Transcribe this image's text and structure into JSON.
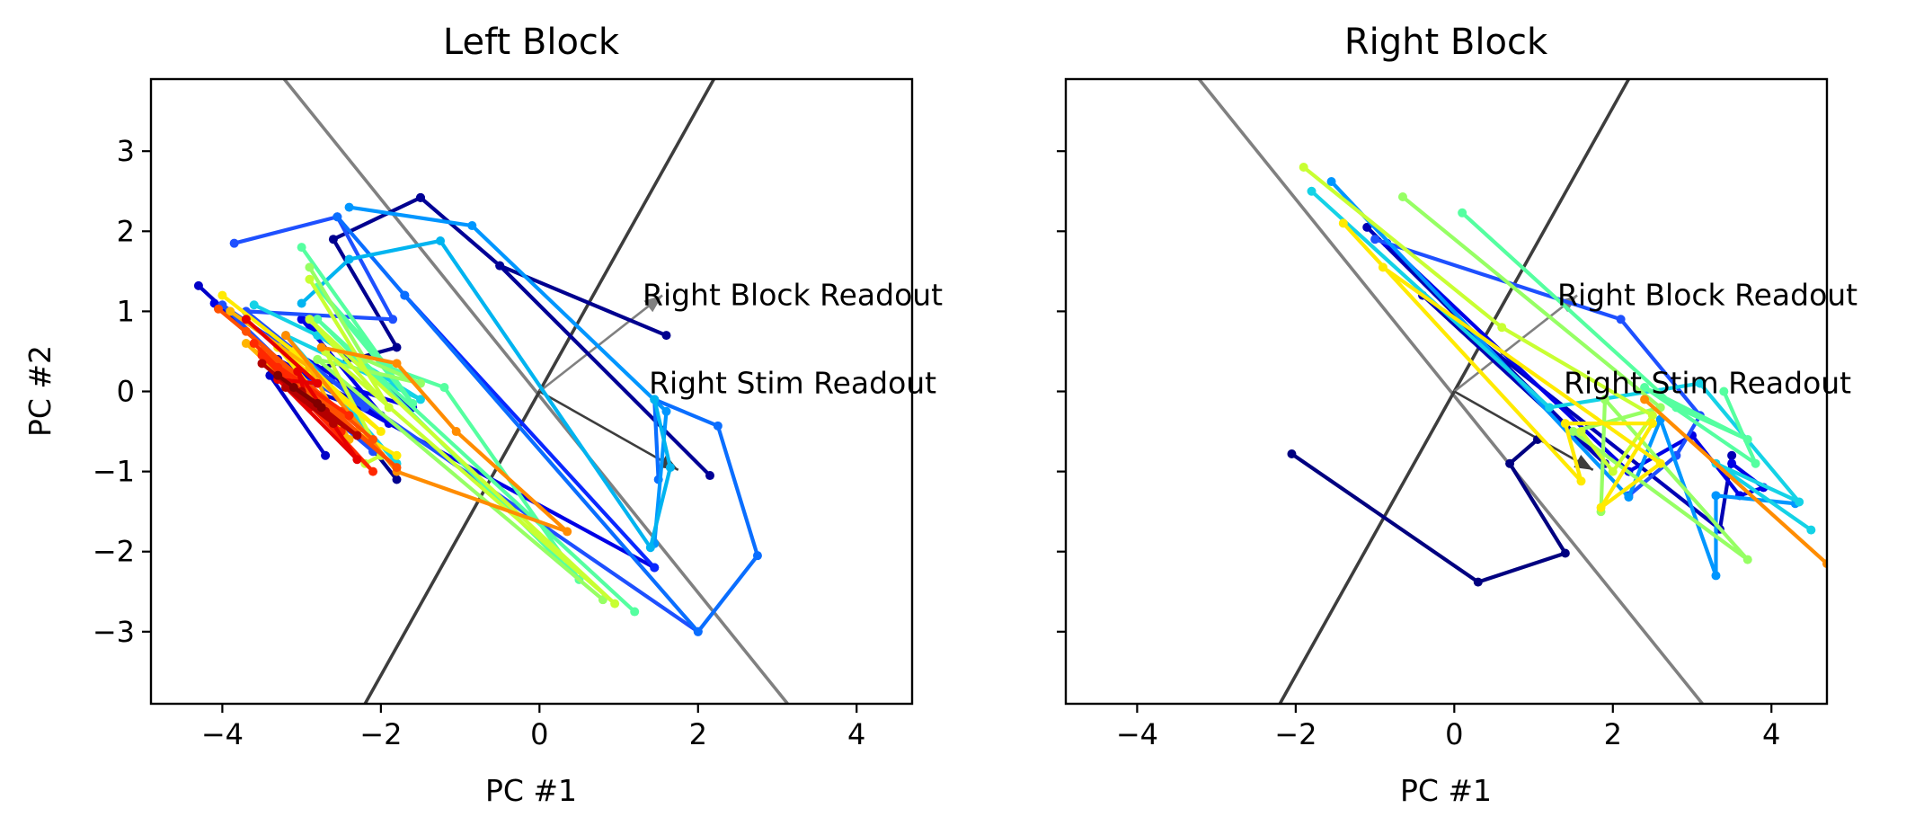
{
  "chart_data": [
    {
      "type": "line",
      "title": "Left Block",
      "xlabel": "PC #1",
      "ylabel": "PC #2",
      "xlim": [
        -4.9,
        4.7
      ],
      "ylim": [
        -3.9,
        3.9
      ],
      "xticks": [
        -4,
        -2,
        0,
        2,
        4
      ],
      "yticks": [
        -3,
        -2,
        -1,
        0,
        1,
        2,
        3
      ],
      "xtick_labels": [
        "−4",
        "−2",
        "0",
        "2",
        "4"
      ],
      "ytick_labels": [
        "−3",
        "−2",
        "−1",
        "0",
        "1",
        "2",
        "3"
      ],
      "grid": false,
      "reference_lines": [
        {
          "color": "#808080",
          "points": [
            [
              -3.22,
              3.9
            ],
            [
              3.13,
              -3.9
            ]
          ]
        },
        {
          "color": "#3d3d3d",
          "points": [
            [
              -2.2,
              -3.9
            ],
            [
              2.2,
              3.9
            ]
          ]
        }
      ],
      "readouts": [
        {
          "label": "Right Block Readout",
          "color": "#808080",
          "end": [
            1.55,
            1.2
          ],
          "label_pos": [
            1.3,
            1.08
          ]
        },
        {
          "label": "Right Stim Readout",
          "color": "#3d3d3d",
          "end": [
            1.75,
            -0.98
          ],
          "label_pos": [
            1.38,
            -0.02
          ]
        }
      ],
      "series": [
        {
          "color": "#00008f",
          "points": [
            [
              -1.5,
              2.42
            ],
            [
              -2.6,
              1.9
            ],
            [
              -1.8,
              0.55
            ],
            [
              -3.1,
              0.2
            ],
            [
              -2.2,
              -0.6
            ],
            [
              -1.8,
              -1.1
            ]
          ]
        },
        {
          "color": "#00008f",
          "points": [
            [
              -0.5,
              1.57
            ],
            [
              1.6,
              0.7
            ]
          ]
        },
        {
          "color": "#000096",
          "points": [
            [
              -1.5,
              2.42
            ],
            [
              -0.5,
              1.57
            ],
            [
              2.15,
              -1.05
            ]
          ]
        },
        {
          "color": "#0000c8",
          "points": [
            [
              -4.3,
              1.32
            ],
            [
              -3.3,
              0.4
            ],
            [
              -2.0,
              -0.3
            ],
            [
              -3.4,
              0.2
            ],
            [
              -2.7,
              -0.8
            ]
          ]
        },
        {
          "color": "#0000e6",
          "points": [
            [
              -4.1,
              1.1
            ],
            [
              -2.6,
              0.2
            ],
            [
              -1.9,
              -0.4
            ],
            [
              -3.0,
              0.9
            ],
            [
              -1.6,
              -0.2
            ],
            [
              -3.2,
              0.3
            ],
            [
              1.45,
              -2.2
            ]
          ]
        },
        {
          "color": "#0a28ff",
          "points": [
            [
              -1.7,
              1.2
            ],
            [
              1.45,
              -2.2
            ]
          ]
        },
        {
          "color": "#1e50ff",
          "points": [
            [
              -3.85,
              1.85
            ],
            [
              -2.55,
              2.18
            ],
            [
              -1.85,
              0.9
            ],
            [
              -3.7,
              1.0
            ],
            [
              -2.2,
              -0.2
            ],
            [
              -3.4,
              0.35
            ],
            [
              -2.1,
              -0.75
            ],
            [
              -4.0,
              1.08
            ],
            [
              2.0,
              -3.0
            ]
          ]
        },
        {
          "color": "#0a6eff",
          "points": [
            [
              -2.55,
              2.18
            ],
            [
              -1.7,
              1.2
            ],
            [
              2.0,
              -3.0
            ],
            [
              2.75,
              -2.05
            ],
            [
              2.25,
              -0.43
            ],
            [
              1.45,
              -0.1
            ],
            [
              1.5,
              -1.1
            ]
          ]
        },
        {
          "color": "#0096ff",
          "points": [
            [
              -2.4,
              2.3
            ],
            [
              -0.85,
              2.07
            ],
            [
              1.6,
              -0.25
            ],
            [
              1.45,
              -1.9
            ]
          ]
        },
        {
          "color": "#00b4f0",
          "points": [
            [
              -3.0,
              1.1
            ],
            [
              -2.4,
              1.65
            ],
            [
              -1.25,
              1.88
            ],
            [
              1.4,
              -1.95
            ],
            [
              1.65,
              -0.95
            ],
            [
              1.45,
              -0.1
            ]
          ]
        },
        {
          "color": "#14d2e6",
          "points": [
            [
              -3.6,
              1.08
            ],
            [
              -2.8,
              0.7
            ],
            [
              -1.5,
              -0.1
            ],
            [
              -3.2,
              0.7
            ],
            [
              -1.8,
              -0.9
            ]
          ]
        },
        {
          "color": "#55ffa0",
          "points": [
            [
              -3.0,
              1.8
            ],
            [
              -1.6,
              -0.15
            ],
            [
              -2.8,
              1.3
            ],
            [
              -1.9,
              0.3
            ],
            [
              -1.2,
              0.05
            ],
            [
              0.5,
              -2.35
            ],
            [
              -2.8,
              0.9
            ],
            [
              1.2,
              -2.75
            ]
          ]
        },
        {
          "color": "#96ff64",
          "points": [
            [
              -2.9,
              1.55
            ],
            [
              -2.2,
              0.4
            ],
            [
              -1.5,
              0.1
            ],
            [
              -2.8,
              0.4
            ],
            [
              0.8,
              -2.6
            ]
          ]
        },
        {
          "color": "#c8ff32",
          "points": [
            [
              -2.9,
              1.4
            ],
            [
              -1.9,
              -0.2
            ],
            [
              -2.9,
              0.9
            ],
            [
              0.95,
              -2.65
            ],
            [
              -2.7,
              0.5
            ],
            [
              -2.0,
              -0.8
            ],
            [
              -2.2,
              -0.9
            ]
          ]
        },
        {
          "color": "#ffea00",
          "points": [
            [
              -4.0,
              1.2
            ],
            [
              -3.1,
              0.5
            ],
            [
              -2.0,
              -0.5
            ],
            [
              -3.3,
              0.55
            ],
            [
              -2.5,
              -0.4
            ],
            [
              -1.8,
              -0.8
            ]
          ]
        },
        {
          "color": "#ffb400",
          "points": [
            [
              -3.9,
              1.0
            ],
            [
              -2.9,
              0.3
            ],
            [
              -2.4,
              -0.6
            ],
            [
              -3.7,
              0.6
            ],
            [
              -2.3,
              -0.5
            ]
          ]
        },
        {
          "color": "#ff8c00",
          "points": [
            [
              -2.75,
              0.55
            ],
            [
              -1.8,
              0.35
            ],
            [
              -1.05,
              -0.5
            ],
            [
              0.35,
              -1.75
            ],
            [
              -1.8,
              -1.0
            ],
            [
              -3.2,
              0.7
            ]
          ]
        },
        {
          "color": "#ff5000",
          "points": [
            [
              -4.05,
              1.03
            ],
            [
              -2.5,
              -0.25
            ],
            [
              -3.5,
              0.5
            ],
            [
              -1.8,
              -0.95
            ],
            [
              -3.7,
              0.75
            ],
            [
              -2.1,
              -0.6
            ]
          ]
        },
        {
          "color": "#ff2800",
          "points": [
            [
              -3.6,
              0.6
            ],
            [
              -2.5,
              -0.5
            ],
            [
              -3.3,
              0.3
            ],
            [
              -2.1,
              -1.0
            ],
            [
              -3.5,
              0.45
            ],
            [
              -2.4,
              -0.3
            ]
          ]
        },
        {
          "color": "#e60000",
          "points": [
            [
              -3.7,
              0.9
            ],
            [
              -2.8,
              0.1
            ],
            [
              -3.3,
              0.15
            ],
            [
              -2.3,
              -0.85
            ],
            [
              -3.05,
              0.25
            ],
            [
              -2.9,
              -0.2
            ]
          ]
        },
        {
          "color": "#b40000",
          "points": [
            [
              -3.5,
              0.35
            ],
            [
              -2.6,
              -0.4
            ],
            [
              -3.2,
              0.05
            ],
            [
              -2.3,
              -0.55
            ],
            [
              -3.0,
              0.0
            ],
            [
              -2.7,
              -0.25
            ]
          ]
        },
        {
          "color": "#800000",
          "points": [
            [
              -3.3,
              0.2
            ],
            [
              -2.75,
              -0.2
            ],
            [
              -3.1,
              0.05
            ],
            [
              -2.8,
              -0.15
            ]
          ]
        }
      ]
    },
    {
      "type": "line",
      "title": "Right Block",
      "xlabel": "PC #1",
      "ylabel": "",
      "xlim": [
        -4.9,
        4.7
      ],
      "ylim": [
        -3.9,
        3.9
      ],
      "xticks": [
        -4,
        -2,
        0,
        2,
        4
      ],
      "yticks": [
        -3,
        -2,
        -1,
        0,
        1,
        2,
        3
      ],
      "xtick_labels": [
        "−4",
        "−2",
        "0",
        "2",
        "4"
      ],
      "ytick_labels": [],
      "grid": false,
      "reference_lines": [
        {
          "color": "#808080",
          "points": [
            [
              -3.22,
              3.9
            ],
            [
              3.13,
              -3.9
            ]
          ]
        },
        {
          "color": "#3d3d3d",
          "points": [
            [
              -2.2,
              -3.9
            ],
            [
              2.2,
              3.9
            ]
          ]
        }
      ],
      "readouts": [
        {
          "label": "Right Block Readout",
          "color": "#808080",
          "end": [
            1.55,
            1.2
          ],
          "label_pos": [
            1.3,
            1.08
          ]
        },
        {
          "label": "Right Stim Readout",
          "color": "#3d3d3d",
          "end": [
            1.75,
            -0.98
          ],
          "label_pos": [
            1.38,
            -0.02
          ]
        }
      ],
      "series": [
        {
          "color": "#000080",
          "points": [
            [
              -2.05,
              -0.78
            ],
            [
              0.3,
              -2.38
            ],
            [
              1.4,
              -2.02
            ],
            [
              0.7,
              -0.9
            ],
            [
              1.05,
              -0.6
            ]
          ]
        },
        {
          "color": "#0000b4",
          "points": [
            [
              -1.1,
              2.05
            ],
            [
              1.9,
              -0.9
            ],
            [
              -0.4,
              1.2
            ],
            [
              3.35,
              -1.72
            ],
            [
              3.5,
              -0.8
            ]
          ]
        },
        {
          "color": "#0000e6",
          "points": [
            [
              -0.85,
              1.85
            ],
            [
              2.2,
              -1.0
            ],
            [
              3.0,
              -0.55
            ],
            [
              3.6,
              -1.3
            ],
            [
              3.9,
              -1.2
            ],
            [
              3.5,
              -0.9
            ]
          ]
        },
        {
          "color": "#1e50ff",
          "points": [
            [
              -1.0,
              1.9
            ],
            [
              2.1,
              0.9
            ],
            [
              3.1,
              -0.3
            ],
            [
              2.8,
              -0.8
            ],
            [
              2.2,
              -1.3
            ]
          ]
        },
        {
          "color": "#0096ff",
          "points": [
            [
              -1.55,
              2.62
            ],
            [
              2.2,
              -1.32
            ],
            [
              2.6,
              -0.35
            ],
            [
              3.3,
              -2.3
            ],
            [
              3.3,
              -1.3
            ],
            [
              4.3,
              -1.4
            ]
          ]
        },
        {
          "color": "#14d2e6",
          "points": [
            [
              -1.8,
              2.5
            ],
            [
              1.2,
              -0.2
            ],
            [
              3.1,
              0.1
            ],
            [
              4.35,
              -1.38
            ],
            [
              3.3,
              -0.9
            ],
            [
              4.5,
              -1.73
            ]
          ]
        },
        {
          "color": "#55ffa0",
          "points": [
            [
              0.1,
              2.23
            ],
            [
              2.8,
              -0.2
            ],
            [
              3.7,
              -0.6
            ],
            [
              2.4,
              0.05
            ],
            [
              3.8,
              -0.9
            ],
            [
              3.4,
              0.0
            ]
          ]
        },
        {
          "color": "#96ff64",
          "points": [
            [
              -0.65,
              2.43
            ],
            [
              2.6,
              -0.2
            ],
            [
              1.5,
              -0.5
            ],
            [
              3.7,
              -2.1
            ],
            [
              1.9,
              -0.1
            ],
            [
              1.85,
              -1.5
            ]
          ]
        },
        {
          "color": "#c8ff32",
          "points": [
            [
              -1.9,
              2.8
            ],
            [
              0.6,
              0.8
            ],
            [
              2.5,
              -0.3
            ],
            [
              2.0,
              -1.0
            ],
            [
              1.6,
              -0.5
            ]
          ]
        },
        {
          "color": "#ffea00",
          "points": [
            [
              -1.4,
              2.1
            ],
            [
              1.6,
              -1.12
            ],
            [
              1.4,
              -0.4
            ],
            [
              2.5,
              -0.4
            ],
            [
              1.85,
              -1.45
            ],
            [
              2.6,
              -0.9
            ],
            [
              -0.9,
              1.55
            ]
          ]
        },
        {
          "color": "#ff8c00",
          "points": [
            [
              2.4,
              -0.1
            ],
            [
              4.7,
              -2.15
            ]
          ]
        }
      ]
    }
  ]
}
